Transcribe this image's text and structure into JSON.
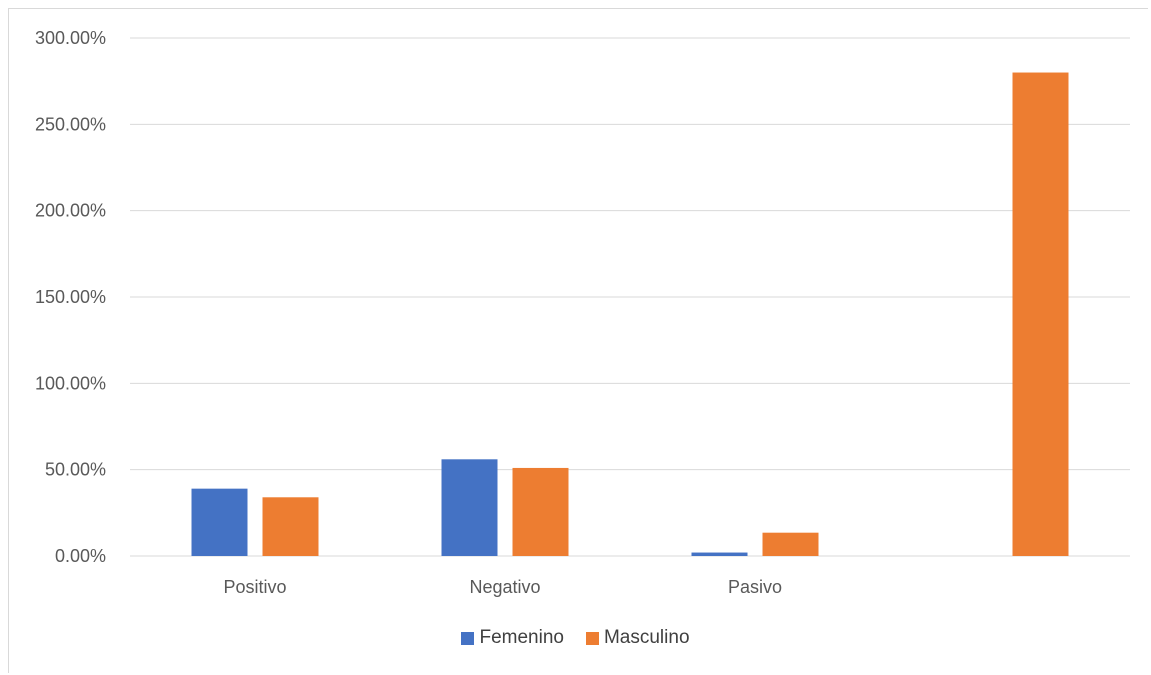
{
  "chart_data": {
    "type": "bar",
    "categories": [
      "Positivo",
      "Negativo",
      "Pasivo",
      ""
    ],
    "series": [
      {
        "name": "Femenino",
        "color": "#4472c4",
        "values": [
          0.39,
          0.56,
          0.02,
          0.0
        ]
      },
      {
        "name": "Masculino",
        "color": "#ed7d31",
        "values": [
          0.34,
          0.51,
          0.135,
          2.8
        ]
      }
    ],
    "y_ticks": [
      "0.00%",
      "50.00%",
      "100.00%",
      "150.00%",
      "200.00%",
      "250.00%",
      "300.00%"
    ],
    "ylim": [
      0,
      3
    ],
    "grid": true,
    "legend_position": "bottom"
  }
}
